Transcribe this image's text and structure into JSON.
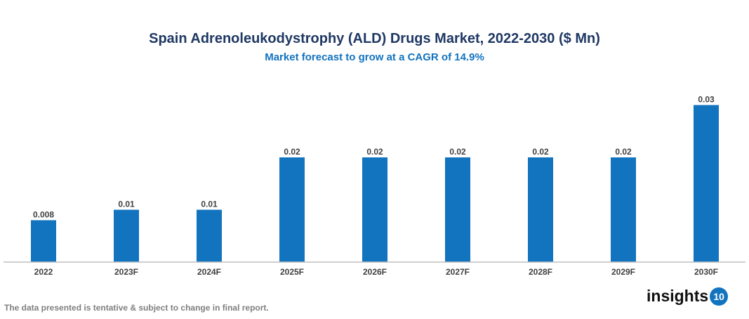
{
  "chart_data": {
    "type": "bar",
    "title": "Spain Adrenoleukodystrophy (ALD) Drugs Market, 2022-2030 ($ Mn)",
    "subtitle": "Market forecast to grow at a CAGR of 14.9%",
    "categories": [
      "2022",
      "2023F",
      "2024F",
      "2025F",
      "2026F",
      "2027F",
      "2028F",
      "2029F",
      "2030F"
    ],
    "values": [
      0.008,
      0.01,
      0.01,
      0.02,
      0.02,
      0.02,
      0.02,
      0.02,
      0.03
    ],
    "data_labels": [
      "0.008",
      "0.01",
      "0.01",
      "0.02",
      "0.02",
      "0.02",
      "0.02",
      "0.02",
      "0.03"
    ],
    "xlabel": "",
    "ylabel": "",
    "ylim": [
      0,
      0.04
    ],
    "grid": false,
    "bar_color": "#1273bf"
  },
  "footer": "The data presented is tentative & subject to change in final report.",
  "logo": {
    "text": "insights",
    "number": "10"
  }
}
